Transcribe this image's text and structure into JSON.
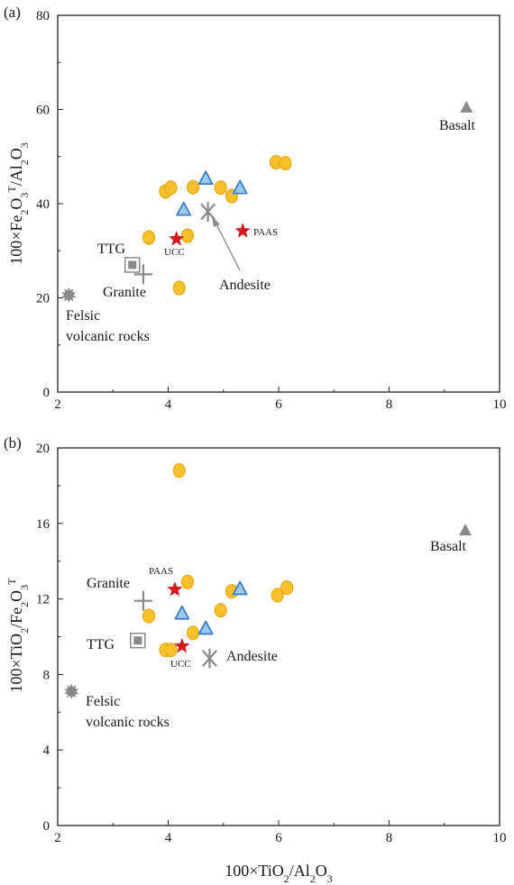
{
  "colors": {
    "sample_circle_fill": "#F7C12B",
    "sample_circle_edge": "#E8A812",
    "sample_triangle_fill": "#9CC9EC",
    "sample_triangle_edge": "#3C7FC4",
    "reference_gray": "#8A8A8A",
    "star_red": "#D7191C",
    "axis": "#222222"
  },
  "chart_data": [
    {
      "panel_label": "(a)",
      "type": "scatter",
      "xlim": [
        2,
        10
      ],
      "ylim": [
        0,
        80
      ],
      "x_ticks": [
        "2",
        "4",
        "6",
        "8",
        "10"
      ],
      "y_ticks": [
        "0",
        "20",
        "40",
        "60",
        "80"
      ],
      "y_axis_title": {
        "pre": "100×Fe",
        "sub1": "2",
        "mid": "O",
        "sub2": "3",
        "sup": "T",
        "post": "/Al",
        "sub3": "2",
        "post2": "O",
        "sub4": "3"
      },
      "series": [
        {
          "marker": "circle",
          "points": [
            [
              3.65,
              32.8
            ],
            [
              3.95,
              42.6
            ],
            [
              4.05,
              43.4
            ],
            [
              4.2,
              22.1
            ],
            [
              4.35,
              33.2
            ],
            [
              4.45,
              43.5
            ],
            [
              4.95,
              43.4
            ],
            [
              5.15,
              41.6
            ],
            [
              5.95,
              48.8
            ],
            [
              6.12,
              48.6
            ]
          ]
        },
        {
          "marker": "triangle",
          "points": [
            [
              4.28,
              38.6
            ],
            [
              4.68,
              45.2
            ],
            [
              5.3,
              43.2
            ]
          ]
        }
      ],
      "references": [
        {
          "key": "ucc",
          "marker": "star",
          "x": 4.15,
          "y": 32.5,
          "label": "UCC"
        },
        {
          "key": "paas",
          "marker": "star",
          "x": 5.35,
          "y": 34.2,
          "label": "PAAS"
        },
        {
          "key": "andesite",
          "marker": "asterisk",
          "x": 4.72,
          "y": 38.3,
          "label": "Andesite"
        },
        {
          "key": "ttg",
          "marker": "square",
          "x": 3.35,
          "y": 27.0,
          "label": "TTG"
        },
        {
          "key": "granite",
          "marker": "plus",
          "x": 3.55,
          "y": 25.0,
          "label": "Granite"
        },
        {
          "key": "felsic",
          "marker": "burst",
          "x": 2.2,
          "y": 20.6,
          "label_line1": "Felsic",
          "label_line2": "volcanic rocks"
        },
        {
          "key": "basalt",
          "marker": "gray-triangle",
          "x": 9.4,
          "y": 60.3,
          "label": "Basalt"
        }
      ]
    },
    {
      "panel_label": "(b)",
      "type": "scatter",
      "xlim": [
        2,
        10
      ],
      "ylim": [
        0,
        20
      ],
      "x_ticks": [
        "2",
        "4",
        "6",
        "8",
        "10"
      ],
      "y_ticks": [
        "0",
        "4",
        "8",
        "12",
        "16",
        "20"
      ],
      "x_axis_title": {
        "pre": "100×TiO",
        "sub1": "2",
        "post": "/Al",
        "sub2": "2",
        "post2": "O",
        "sub3": "3"
      },
      "y_axis_title": {
        "pre": "100×TiO",
        "sub1": "2",
        "post": "/Fe",
        "sub2": "2",
        "post2": "O",
        "sub3": "3",
        "sup": "T"
      },
      "series": [
        {
          "marker": "circle",
          "points": [
            [
              4.2,
              18.8
            ],
            [
              4.35,
              12.9
            ],
            [
              3.65,
              11.1
            ],
            [
              3.95,
              9.3
            ],
            [
              4.05,
              9.3
            ],
            [
              4.45,
              10.2
            ],
            [
              4.95,
              11.4
            ],
            [
              5.15,
              12.4
            ],
            [
              5.98,
              12.2
            ],
            [
              6.15,
              12.6
            ]
          ]
        },
        {
          "marker": "triangle",
          "points": [
            [
              4.25,
              11.2
            ],
            [
              4.68,
              10.4
            ],
            [
              5.3,
              12.5
            ]
          ]
        }
      ],
      "references": [
        {
          "key": "paas",
          "marker": "star",
          "x": 4.12,
          "y": 12.5,
          "label": "PAAS"
        },
        {
          "key": "ucc",
          "marker": "star",
          "x": 4.25,
          "y": 9.5,
          "label": "UCC"
        },
        {
          "key": "andesite",
          "marker": "asterisk",
          "x": 4.75,
          "y": 8.85,
          "label": "Andesite"
        },
        {
          "key": "granite",
          "marker": "plus",
          "x": 3.55,
          "y": 11.9,
          "label": "Granite"
        },
        {
          "key": "ttg",
          "marker": "square",
          "x": 3.45,
          "y": 9.8,
          "label": "TTG"
        },
        {
          "key": "felsic",
          "marker": "burst",
          "x": 2.25,
          "y": 7.1,
          "label_line1": "Felsic",
          "label_line2": "volcanic rocks"
        },
        {
          "key": "basalt",
          "marker": "gray-triangle",
          "x": 9.38,
          "y": 15.6,
          "label": "Basalt"
        }
      ]
    }
  ]
}
